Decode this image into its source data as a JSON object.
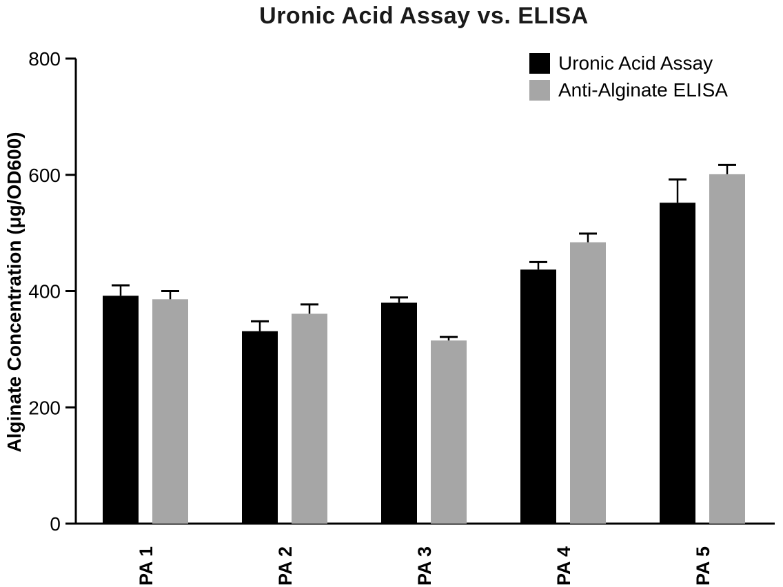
{
  "chart_data": {
    "type": "bar",
    "title": "Uronic Acid Assay vs. ELISA",
    "categories": [
      "PA 1",
      "PA 2",
      "PA 3",
      "PA 4",
      "PA 5"
    ],
    "series": [
      {
        "name": "Uronic Acid Assay",
        "color": "#000000",
        "values": [
          392,
          331,
          380,
          437,
          552
        ],
        "errors": [
          18,
          17,
          9,
          13,
          40
        ]
      },
      {
        "name": "Anti-Alginate ELISA",
        "color": "#a6a6a6",
        "values": [
          386,
          361,
          315,
          484,
          601
        ],
        "errors": [
          14,
          16,
          6,
          15,
          16
        ]
      }
    ],
    "xlabel": "",
    "ylabel": "Alginate Concentration (μg/OD600)",
    "ylim": [
      0,
      800
    ],
    "yticks": [
      0,
      200,
      400,
      600,
      800
    ],
    "grid": false,
    "legend_position": "top-right",
    "error_bar_color": "#000000",
    "axis_color": "#000000"
  }
}
